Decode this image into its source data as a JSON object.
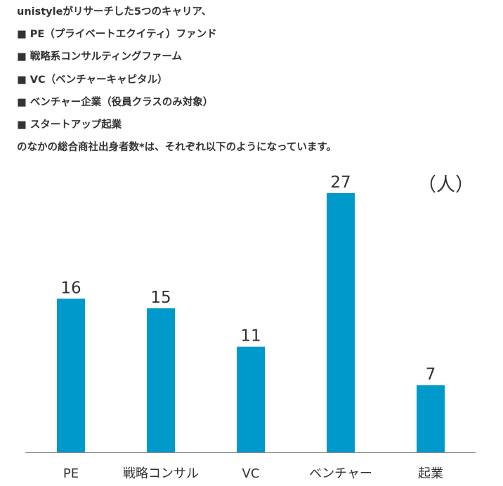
{
  "intro": {
    "lines": [
      "unistyleがリサーチした5つのキャリア、",
      "■ PE（プライベートエクイティ）ファンド",
      "■ 戦略系コンサルティングファーム",
      "■ VC（ベンチャーキャピタル）",
      "■ ベンチャー企業（役員クラスのみ対象）",
      "■ スタートアップ起業",
      "のなかの総合商社出身者数*は、それぞれ以下のようになっています。"
    ]
  },
  "chart_data": {
    "type": "bar",
    "categories": [
      "PE",
      "戦略コンサル",
      "VC",
      "ベンチャー",
      "起業"
    ],
    "values": [
      16,
      15,
      11,
      27,
      7
    ],
    "unit_label": "（人）",
    "title": "",
    "xlabel": "",
    "ylabel": "",
    "ylim": [
      0,
      27
    ],
    "grid": false,
    "bar_color": "#0099cc",
    "axis_color": "#888888"
  }
}
